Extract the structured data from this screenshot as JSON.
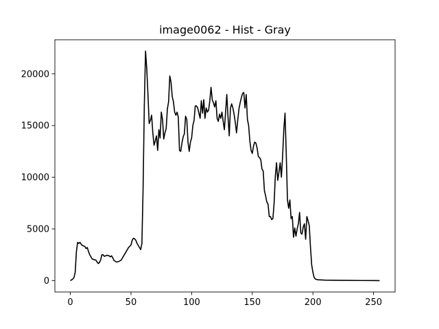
{
  "chart_data": {
    "type": "line",
    "title": "image0062 - Hist - Gray",
    "xlabel": "",
    "ylabel": "",
    "xlim": [
      -12.75,
      267.75
    ],
    "ylim": [
      -1100,
      23300
    ],
    "x_ticks": [
      0,
      50,
      100,
      150,
      200,
      250
    ],
    "x_tick_labels": [
      "0",
      "50",
      "100",
      "150",
      "200",
      "250"
    ],
    "y_ticks": [
      0,
      5000,
      10000,
      15000,
      20000
    ],
    "y_tick_labels": [
      "0",
      "5000",
      "10000",
      "15000",
      "20000"
    ],
    "grid": false,
    "legend": "none",
    "line_color": "#000000",
    "series": [
      {
        "points": [
          [
            0,
            0
          ],
          [
            2,
            150
          ],
          [
            3,
            300
          ],
          [
            4,
            800
          ],
          [
            5,
            2800
          ],
          [
            6,
            3700
          ],
          [
            7,
            3600
          ],
          [
            8,
            3700
          ],
          [
            9,
            3500
          ],
          [
            10,
            3400
          ],
          [
            12,
            3300
          ],
          [
            13,
            3100
          ],
          [
            14,
            3200
          ],
          [
            15,
            2800
          ],
          [
            16,
            2500
          ],
          [
            18,
            2100
          ],
          [
            20,
            2000
          ],
          [
            21,
            2000
          ],
          [
            22,
            1800
          ],
          [
            23,
            1650
          ],
          [
            24,
            1750
          ],
          [
            25,
            2000
          ],
          [
            26,
            2500
          ],
          [
            27,
            2500
          ],
          [
            28,
            2350
          ],
          [
            30,
            2450
          ],
          [
            32,
            2400
          ],
          [
            33,
            2300
          ],
          [
            34,
            2400
          ],
          [
            35,
            2200
          ],
          [
            36,
            1950
          ],
          [
            38,
            1800
          ],
          [
            40,
            1850
          ],
          [
            42,
            2000
          ],
          [
            44,
            2400
          ],
          [
            46,
            2800
          ],
          [
            48,
            3200
          ],
          [
            50,
            3450
          ],
          [
            51,
            3900
          ],
          [
            52,
            4100
          ],
          [
            53,
            4050
          ],
          [
            54,
            3900
          ],
          [
            55,
            3600
          ],
          [
            56,
            3400
          ],
          [
            57,
            3200
          ],
          [
            58,
            3000
          ],
          [
            59,
            3600
          ],
          [
            60,
            9000
          ],
          [
            61,
            17000
          ],
          [
            62,
            22200
          ],
          [
            63,
            20500
          ],
          [
            64,
            18000
          ],
          [
            65,
            15200
          ],
          [
            66,
            15500
          ],
          [
            67,
            16000
          ],
          [
            68,
            14300
          ],
          [
            69,
            13100
          ],
          [
            70,
            13500
          ],
          [
            71,
            14000
          ],
          [
            72,
            12600
          ],
          [
            73,
            14600
          ],
          [
            74,
            13800
          ],
          [
            75,
            16300
          ],
          [
            76,
            15600
          ],
          [
            77,
            13700
          ],
          [
            78,
            14300
          ],
          [
            79,
            14700
          ],
          [
            80,
            16600
          ],
          [
            81,
            17300
          ],
          [
            82,
            19800
          ],
          [
            83,
            19200
          ],
          [
            84,
            17800
          ],
          [
            85,
            17300
          ],
          [
            86,
            16300
          ],
          [
            87,
            16000
          ],
          [
            88,
            16300
          ],
          [
            89,
            15800
          ],
          [
            90,
            12600
          ],
          [
            91,
            12500
          ],
          [
            92,
            13300
          ],
          [
            93,
            13900
          ],
          [
            94,
            14200
          ],
          [
            95,
            15900
          ],
          [
            96,
            15600
          ],
          [
            97,
            13400
          ],
          [
            98,
            12500
          ],
          [
            99,
            13400
          ],
          [
            100,
            13800
          ],
          [
            101,
            15000
          ],
          [
            102,
            15500
          ],
          [
            103,
            16900
          ],
          [
            104,
            16900
          ],
          [
            105,
            16700
          ],
          [
            106,
            16200
          ],
          [
            107,
            15700
          ],
          [
            108,
            17400
          ],
          [
            109,
            16200
          ],
          [
            110,
            17500
          ],
          [
            111,
            15700
          ],
          [
            112,
            16700
          ],
          [
            113,
            16300
          ],
          [
            114,
            16500
          ],
          [
            115,
            17400
          ],
          [
            116,
            18700
          ],
          [
            117,
            17500
          ],
          [
            118,
            17200
          ],
          [
            119,
            16800
          ],
          [
            120,
            17400
          ],
          [
            121,
            15700
          ],
          [
            122,
            15400
          ],
          [
            123,
            16100
          ],
          [
            124,
            15700
          ],
          [
            125,
            16300
          ],
          [
            126,
            15400
          ],
          [
            127,
            14600
          ],
          [
            128,
            16300
          ],
          [
            129,
            18000
          ],
          [
            130,
            15800
          ],
          [
            131,
            14000
          ],
          [
            132,
            16700
          ],
          [
            133,
            17100
          ],
          [
            134,
            16700
          ],
          [
            135,
            16100
          ],
          [
            136,
            15300
          ],
          [
            137,
            14300
          ],
          [
            138,
            15500
          ],
          [
            139,
            16600
          ],
          [
            140,
            17200
          ],
          [
            141,
            17700
          ],
          [
            142,
            18100
          ],
          [
            143,
            18200
          ],
          [
            144,
            16700
          ],
          [
            145,
            18000
          ],
          [
            146,
            15600
          ],
          [
            147,
            15000
          ],
          [
            148,
            13500
          ],
          [
            149,
            12600
          ],
          [
            150,
            12300
          ],
          [
            151,
            13000
          ],
          [
            152,
            13400
          ],
          [
            153,
            13300
          ],
          [
            154,
            12800
          ],
          [
            155,
            12000
          ],
          [
            156,
            11900
          ],
          [
            157,
            11700
          ],
          [
            158,
            10800
          ],
          [
            159,
            10600
          ],
          [
            160,
            8700
          ],
          [
            161,
            8200
          ],
          [
            162,
            7600
          ],
          [
            163,
            7400
          ],
          [
            164,
            6200
          ],
          [
            165,
            6200
          ],
          [
            166,
            5900
          ],
          [
            167,
            6000
          ],
          [
            168,
            7500
          ],
          [
            169,
            10100
          ],
          [
            170,
            11400
          ],
          [
            171,
            9700
          ],
          [
            172,
            10500
          ],
          [
            173,
            11400
          ],
          [
            174,
            10000
          ],
          [
            175,
            12000
          ],
          [
            176,
            14600
          ],
          [
            177,
            16200
          ],
          [
            178,
            12300
          ],
          [
            179,
            7800
          ],
          [
            180,
            7000
          ],
          [
            181,
            7800
          ],
          [
            182,
            6000
          ],
          [
            183,
            6200
          ],
          [
            184,
            4200
          ],
          [
            185,
            5100
          ],
          [
            186,
            4300
          ],
          [
            187,
            5000
          ],
          [
            188,
            5500
          ],
          [
            189,
            6600
          ],
          [
            190,
            4600
          ],
          [
            191,
            4500
          ],
          [
            192,
            5200
          ],
          [
            193,
            5500
          ],
          [
            194,
            4000
          ],
          [
            195,
            6200
          ],
          [
            196,
            5800
          ],
          [
            197,
            5300
          ],
          [
            198,
            3200
          ],
          [
            199,
            1500
          ],
          [
            200,
            800
          ],
          [
            201,
            300
          ],
          [
            202,
            150
          ],
          [
            204,
            80
          ],
          [
            210,
            50
          ],
          [
            220,
            30
          ],
          [
            230,
            20
          ],
          [
            240,
            10
          ],
          [
            250,
            5
          ],
          [
            255,
            0
          ]
        ]
      }
    ]
  }
}
